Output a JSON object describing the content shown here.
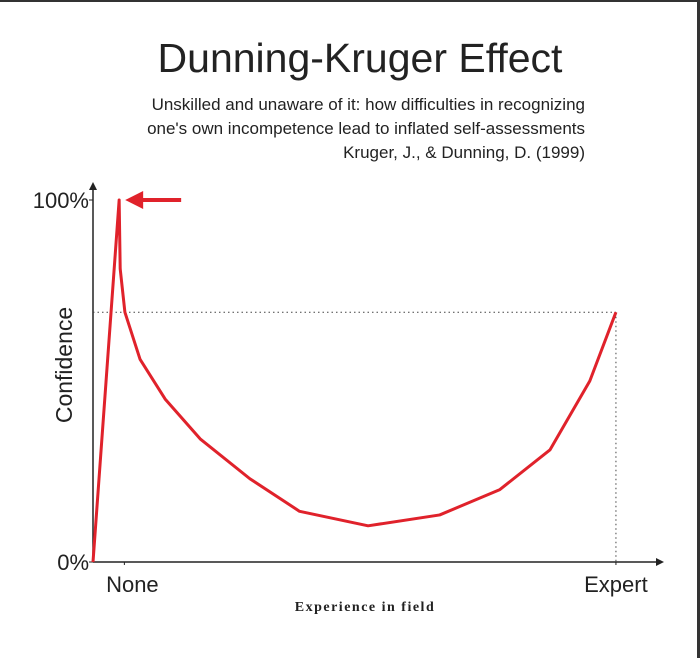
{
  "chart_data": {
    "type": "line",
    "title": "Dunning-Kruger Effect",
    "subtitle": [
      "Unskilled and unaware of it: how difficulties in recognizing",
      "one's own incompetence lead to inflated self-assessments",
      "Kruger, J., & Dunning, D. (1999)"
    ],
    "xlabel": "Experience in field",
    "ylabel": "Confidence",
    "x": [
      0,
      5,
      5.2,
      6.1,
      9,
      13.8,
      20.5,
      30,
      39.5,
      52.6,
      66.3,
      77.8,
      87.4,
      95,
      100
    ],
    "series": [
      {
        "color": "#e0222b",
        "values": [
          0,
          100,
          81,
          69,
          56,
          45,
          34,
          23,
          14,
          10,
          13,
          20,
          31,
          50,
          69
        ]
      }
    ],
    "xlim": [
      0,
      109
    ],
    "ylim": [
      0,
      100
    ],
    "xticks": [
      {
        "value": 6,
        "label": "None"
      },
      {
        "value": 100,
        "label": "Expert"
      }
    ],
    "yticks": [
      {
        "value": 0,
        "label": "0%"
      },
      {
        "value": 100,
        "label": "100%"
      }
    ]
  }
}
